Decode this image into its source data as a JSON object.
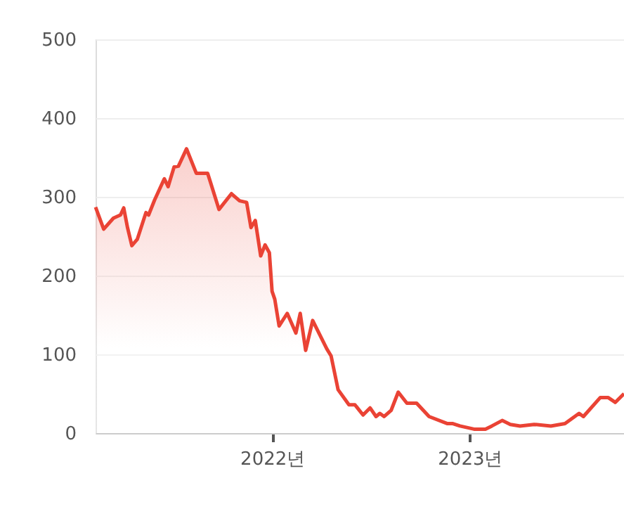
{
  "chart_data": {
    "type": "area",
    "x": [
      "2021-02-09",
      "2021-02-24",
      "2021-03-14",
      "2021-03-27",
      "2021-04-02",
      "2021-04-09",
      "2021-04-17",
      "2021-04-27",
      "2021-05-13",
      "2021-05-18",
      "2021-05-29",
      "2021-06-16",
      "2021-06-23",
      "2021-07-04",
      "2021-07-12",
      "2021-07-27",
      "2021-08-14",
      "2021-09-04",
      "2021-09-25",
      "2021-10-18",
      "2021-11-02",
      "2021-11-15",
      "2021-11-23",
      "2021-12-01",
      "2021-12-11",
      "2021-12-19",
      "2021-12-27",
      "2022-01-01",
      "2022-01-06",
      "2022-01-14",
      "2022-01-29",
      "2022-02-14",
      "2022-02-22",
      "2022-03-04",
      "2022-03-17",
      "2022-04-12",
      "2022-04-20",
      "2022-05-03",
      "2022-05-23",
      "2022-06-03",
      "2022-06-18",
      "2022-07-01",
      "2022-07-12",
      "2022-07-19",
      "2022-07-27",
      "2022-08-09",
      "2022-08-22",
      "2022-09-07",
      "2022-09-25",
      "2022-10-18",
      "2022-11-21",
      "2022-12-01",
      "2022-12-14",
      "2023-01-09",
      "2023-01-30",
      "2023-02-11",
      "2023-03-02",
      "2023-03-17",
      "2023-04-04",
      "2023-04-30",
      "2023-05-31",
      "2023-06-26",
      "2023-07-22",
      "2023-07-30",
      "2023-08-30",
      "2023-09-14",
      "2023-09-27",
      "2023-10-13"
    ],
    "series": [
      {
        "color": "#ea4335",
        "values": [
          287,
          259,
          273,
          277,
          286,
          261,
          238,
          246,
          280,
          277,
          296,
          323,
          313,
          338,
          339,
          361,
          330,
          330,
          284,
          304,
          295,
          293,
          261,
          270,
          225,
          239,
          229,
          180,
          170,
          136,
          152,
          127,
          152,
          105,
          143,
          107,
          98,
          55,
          36,
          36,
          23,
          32,
          21,
          25,
          21,
          29,
          52,
          38,
          38,
          21,
          12,
          12,
          9,
          5,
          5,
          9,
          16,
          11,
          9,
          11,
          9,
          12,
          25,
          21,
          45,
          45,
          39,
          50
        ]
      }
    ],
    "xlim": [
      "2021-02-09",
      "2023-10-13"
    ],
    "xticks": [
      {
        "value": "2022-01-01",
        "label": "2022년"
      },
      {
        "value": "2023-01-01",
        "label": "2023년"
      }
    ],
    "ylim": [
      0,
      500
    ],
    "yticks": [
      0,
      100,
      200,
      300,
      400,
      500
    ],
    "grid": "y"
  }
}
